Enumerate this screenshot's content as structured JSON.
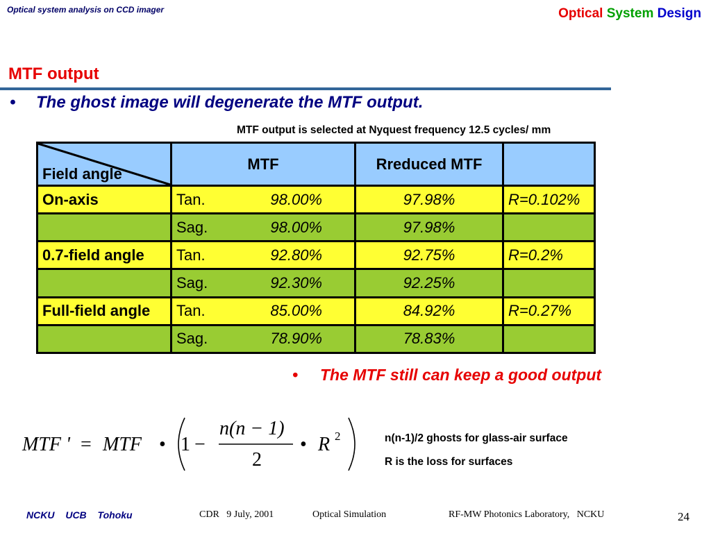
{
  "header": {
    "left_text": "Optical system analysis on CCD imager",
    "right_words": [
      {
        "text": "Optical",
        "color": "#e60000"
      },
      {
        "text": "System",
        "color": "#00a000"
      },
      {
        "text": "Design",
        "color": "#0000cc"
      }
    ]
  },
  "slide": {
    "title": "MTF output",
    "bullet_symbol": "•",
    "bullet1": "The ghost image will degenerate the MTF output.",
    "caption": "MTF output is selected at Nyquest frequency 12.5 cycles/ mm",
    "bullet2": "The MTF still can keep a good output"
  },
  "table": {
    "header": {
      "field": "Field angle",
      "mtf": "MTF",
      "reduced": "Rreduced MTF",
      "r": ""
    },
    "rows": [
      {
        "field": "On-axis",
        "dir": "Tan.",
        "mtf": "98.00%",
        "reduced": "97.98%",
        "r": "R=0.102%"
      },
      {
        "field": "",
        "dir": "Sag.",
        "mtf": "98.00%",
        "reduced": "97.98%",
        "r": ""
      },
      {
        "field": "0.7-field angle",
        "dir": "Tan.",
        "mtf": "92.80%",
        "reduced": "92.75%",
        "r": "R=0.2%"
      },
      {
        "field": "",
        "dir": "Sag.",
        "mtf": "92.30%",
        "reduced": "92.25%",
        "r": ""
      },
      {
        "field": "Full-field angle",
        "dir": "Tan.",
        "mtf": "85.00%",
        "reduced": "84.92%",
        "r": "R=0.27%"
      },
      {
        "field": "",
        "dir": "Sag.",
        "mtf": "78.90%",
        "reduced": "78.83%",
        "r": ""
      }
    ],
    "colors": {
      "header": "#99ccff",
      "yellow": "#ffff33",
      "green": "#99cc33"
    }
  },
  "formula": {
    "lhs": "MTF '",
    "eq": "=",
    "mtf": "MTF",
    "dot": "•",
    "one": "1",
    "minus": "−",
    "numerator": "n(n − 1)",
    "denominator": "2",
    "r": "R",
    "exp": "2"
  },
  "notes": {
    "line1": "n(n-1)/2 ghosts for glass-air surface",
    "line2": "R is the loss for surfaces"
  },
  "footer": {
    "left": "NCKU UCB Tohoku",
    "date": "CDR   9 July, 2001",
    "sim": "Optical Simulation",
    "lab": "RF-MW Photonics Laboratory,   NCKU",
    "page": "24"
  }
}
